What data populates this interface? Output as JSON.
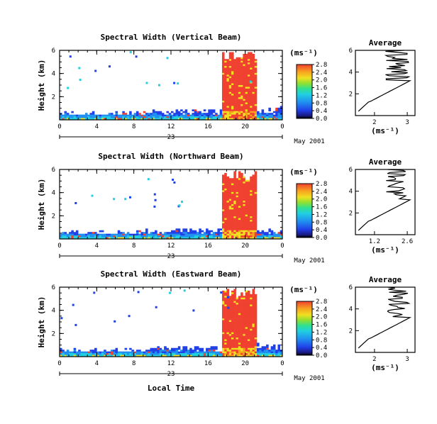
{
  "chart_data": [
    {
      "type": "heatmap",
      "title": "Spectral Width (Vertical Beam)",
      "ylabel": "Height (km)",
      "yticks": [
        "2",
        "4",
        "6"
      ],
      "xticks": [
        "0",
        "4",
        "8",
        "12",
        "16",
        "20",
        "0"
      ],
      "date_marker": "23",
      "date_label": "May 2001",
      "colorbar": {
        "unit": "(ms⁻¹)",
        "ticks": [
          "0.0",
          "0.4",
          "0.8",
          "1.2",
          "1.6",
          "2.0",
          "2.4",
          "2.8"
        ]
      },
      "average": {
        "title": "Average",
        "xlabel": "(ms⁻¹)",
        "xticks": [
          "2",
          "3"
        ],
        "yticks": [
          "2",
          "4",
          "6"
        ]
      }
    },
    {
      "type": "heatmap",
      "title": "Spectral Width (Northward Beam)",
      "ylabel": "Height (km)",
      "yticks": [
        "2",
        "4",
        "6"
      ],
      "xticks": [
        "0",
        "4",
        "8",
        "12",
        "16",
        "20",
        "0"
      ],
      "date_marker": "23",
      "date_label": "May 2001",
      "colorbar": {
        "unit": "(ms⁻¹)",
        "ticks": [
          "0.0",
          "0.4",
          "0.8",
          "1.2",
          "1.6",
          "2.0",
          "2.4",
          "2.8"
        ]
      },
      "average": {
        "title": "Average",
        "xlabel": "(ms⁻¹)",
        "xticks": [
          "1.2",
          "2.6"
        ],
        "yticks": [
          "2",
          "4",
          "6"
        ]
      }
    },
    {
      "type": "heatmap",
      "title": "Spectral Width (Eastward Beam)",
      "ylabel": "Height (km)",
      "yticks": [
        "2",
        "4",
        "6"
      ],
      "xticks": [
        "0",
        "4",
        "8",
        "12",
        "16",
        "20",
        "0"
      ],
      "date_marker": "23",
      "date_label": "May 2001",
      "colorbar": {
        "unit": "(ms⁻¹)",
        "ticks": [
          "0.0",
          "0.4",
          "0.8",
          "1.2",
          "1.6",
          "2.0",
          "2.4",
          "2.8"
        ]
      },
      "average": {
        "title": "Average",
        "xlabel": "(ms⁻¹)",
        "xticks": [
          "2",
          "3"
        ],
        "yticks": [
          "2",
          "4",
          "6"
        ]
      },
      "xlabel": "Local Time"
    }
  ],
  "colors": {
    "scale": [
      "#1a1a80",
      "#2040e8",
      "#2090f0",
      "#20d0e0",
      "#30e090",
      "#90e030",
      "#f0e020",
      "#f8a020",
      "#f04030"
    ]
  }
}
